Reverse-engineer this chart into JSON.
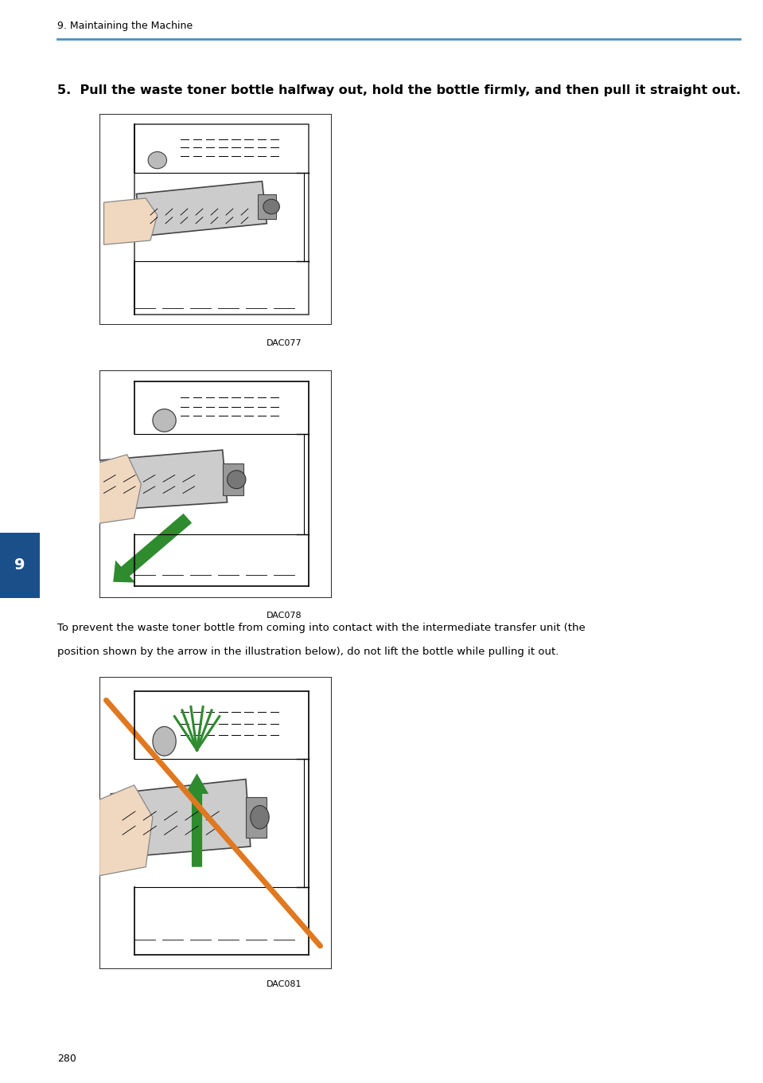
{
  "page_width": 9.59,
  "page_height": 13.6,
  "dpi": 100,
  "bg_color": "#ffffff",
  "header_text": "9. Maintaining the Machine",
  "header_line_color": "#4a90c4",
  "header_font_size": 9,
  "step_number": "5.",
  "step_text": "Pull the waste toner bottle halfway out, hold the bottle firmly, and then pull it straight out.",
  "step_font_size": 11.5,
  "caption1": "DAC077",
  "caption2": "DAC078",
  "caption3": "DAC081",
  "caption_font_size": 8,
  "warning_line1": "To prevent the waste toner bottle from coming into contact with the intermediate transfer unit (the",
  "warning_line2": "position shown by the arrow in the illustration below), do not lift the bottle while pulling it out.",
  "warning_font_size": 9.5,
  "tab_number": "9",
  "tab_bg": "#1a4f8a",
  "tab_text_color": "#ffffff",
  "tab_font_size": 14,
  "page_number": "280",
  "page_number_font_size": 9,
  "arrow_green_color": "#2e8b2e",
  "arrow_orange_color": "#e07820",
  "text_color": "#000000"
}
